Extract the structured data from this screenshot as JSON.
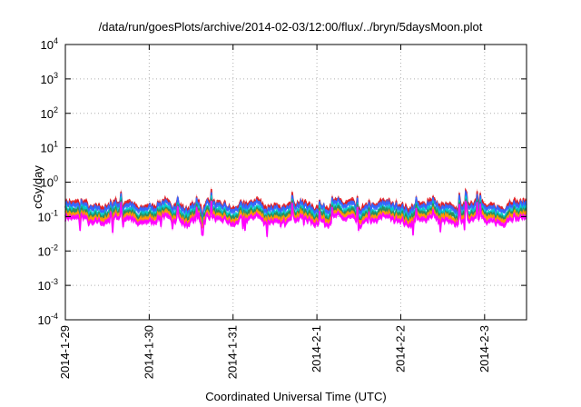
{
  "chart_data": {
    "type": "line",
    "title": "/data/run/goesPlots/archive/2014-02-03/12:00/flux/../bryn/5daysMoon.plot",
    "xlabel": "Coordinated Universal Time (UTC)",
    "ylabel": "cGy/day",
    "y_scale": "log",
    "ylim": [
      0.0001,
      10000
    ],
    "y_ticks": [
      {
        "value": 0.0001,
        "base": "10",
        "exp": "-4"
      },
      {
        "value": 0.001,
        "base": "10",
        "exp": "-3"
      },
      {
        "value": 0.01,
        "base": "10",
        "exp": "-2"
      },
      {
        "value": 0.1,
        "base": "10",
        "exp": "-1"
      },
      {
        "value": 1,
        "base": "10",
        "exp": "0"
      },
      {
        "value": 10,
        "base": "10",
        "exp": "1"
      },
      {
        "value": 100,
        "base": "10",
        "exp": "2"
      },
      {
        "value": 1000,
        "base": "10",
        "exp": "3"
      },
      {
        "value": 10000,
        "base": "10",
        "exp": "4"
      }
    ],
    "xlim": [
      "2014-01-29T00:00",
      "2014-02-03T12:00"
    ],
    "x_ticks": [
      {
        "label": "2014-1-29",
        "value": "2014-01-29"
      },
      {
        "label": "2014-1-30",
        "value": "2014-01-30"
      },
      {
        "label": "2014-1-31",
        "value": "2014-01-31"
      },
      {
        "label": "2014-2-1",
        "value": "2014-02-01"
      },
      {
        "label": "2014-2-2",
        "value": "2014-02-02"
      },
      {
        "label": "2014-2-3",
        "value": "2014-02-03"
      }
    ],
    "grid": true,
    "series": [
      {
        "color": "#e41a1c",
        "baseline": 0.22
      },
      {
        "color": "#3366ff",
        "baseline": 0.19
      },
      {
        "color": "#00cccc",
        "baseline": 0.14
      },
      {
        "color": "#2e8b57",
        "baseline": 0.12
      },
      {
        "color": "#ff9900",
        "baseline": 0.1
      },
      {
        "color": "#ff00ff",
        "baseline": 0.08
      }
    ]
  }
}
